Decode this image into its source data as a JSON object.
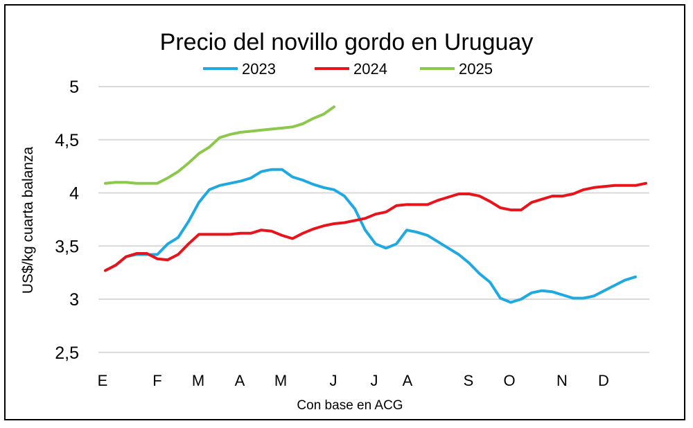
{
  "chart_data": {
    "type": "line",
    "title": "Precio del novillo gordo en Uruguay",
    "xlabel": "Con base en ACG",
    "ylabel": "US$/kg cuarta balanza",
    "ylim": [
      2.5,
      5
    ],
    "yticks": [
      "2,5",
      "3",
      "3,5",
      "4",
      "4,5",
      "5"
    ],
    "xtick_labels": [
      "E",
      "F",
      "M",
      "A",
      "M",
      "J",
      "J",
      "A",
      "S",
      "O",
      "N",
      "D"
    ],
    "grid": "horizontal",
    "legend_position": "top",
    "series": [
      {
        "name": "2023",
        "color": "#1FA9E1",
        "values": [
          3.27,
          3.32,
          3.4,
          3.42,
          3.42,
          3.42,
          3.52,
          3.58,
          3.73,
          3.91,
          4.03,
          4.07,
          4.09,
          4.11,
          4.14,
          4.2,
          4.22,
          4.22,
          4.15,
          4.12,
          4.08,
          4.05,
          4.03,
          3.97,
          3.85,
          3.65,
          3.52,
          3.48,
          3.52,
          3.65,
          3.63,
          3.6,
          3.54,
          3.48,
          3.42,
          3.34,
          3.24,
          3.16,
          3.01,
          2.97,
          3.0,
          3.06,
          3.08,
          3.07,
          3.04,
          3.01,
          3.01,
          3.03,
          3.08,
          3.13,
          3.18,
          3.21
        ]
      },
      {
        "name": "2024",
        "color": "#E8141B",
        "values": [
          3.27,
          3.32,
          3.4,
          3.43,
          3.43,
          3.38,
          3.37,
          3.42,
          3.52,
          3.61,
          3.61,
          3.61,
          3.61,
          3.62,
          3.62,
          3.65,
          3.64,
          3.6,
          3.57,
          3.62,
          3.66,
          3.69,
          3.71,
          3.72,
          3.74,
          3.76,
          3.8,
          3.82,
          3.88,
          3.89,
          3.89,
          3.89,
          3.93,
          3.96,
          3.99,
          3.99,
          3.97,
          3.92,
          3.86,
          3.84,
          3.84,
          3.91,
          3.94,
          3.97,
          3.97,
          3.99,
          4.03,
          4.05,
          4.06,
          4.07,
          4.07,
          4.07,
          4.09
        ]
      },
      {
        "name": "2025",
        "color": "#8CC84B",
        "values": [
          4.09,
          4.1,
          4.1,
          4.09,
          4.09,
          4.09,
          4.14,
          4.2,
          4.28,
          4.37,
          4.43,
          4.52,
          4.55,
          4.57,
          4.58,
          4.59,
          4.6,
          4.61,
          4.62,
          4.65,
          4.7,
          4.74,
          4.81
        ]
      }
    ]
  }
}
